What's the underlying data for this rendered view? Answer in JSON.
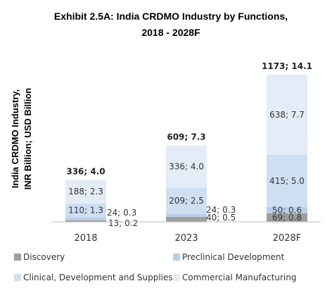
{
  "chart_data": {
    "type": "bar",
    "stacked": true,
    "title": "Exhibit 2.5A: India CRDMO Industry by Functions,",
    "subtitle": "2018 - 2028F",
    "ylabel_line1": "India CRDMO Industry,",
    "ylabel_line2": "INR Billion; USD Billion",
    "categories": [
      "2018",
      "2023",
      "2028F"
    ],
    "series": [
      {
        "name": "Discovery",
        "values": [
          13,
          40,
          69
        ],
        "labels": [
          "13; 0.2",
          "40; 0.5",
          "69; 0.8"
        ],
        "color": "#9e9e9e"
      },
      {
        "name": "Preclinical Development",
        "values": [
          24,
          24,
          50
        ],
        "labels": [
          "24; 0.3",
          "24; 0.3",
          "50; 0.6"
        ],
        "color": "#b9d0ea"
      },
      {
        "name": "Clinical, Development and Supplies",
        "values": [
          110,
          209,
          415
        ],
        "labels": [
          "110; 1.3",
          "209; 2.5",
          "415; 5.0"
        ],
        "color": "#cfdff2"
      },
      {
        "name": "Commercial Manufacturing",
        "values": [
          188,
          336,
          638
        ],
        "labels": [
          "188; 2.3",
          "336; 4.0",
          "638; 7.7"
        ],
        "color": "#e4ecf7"
      }
    ],
    "totals": [
      "336;  4.0",
      "609;  7.3",
      "1173;  14.1"
    ],
    "ylim": [
      0,
      1173
    ],
    "grid": false,
    "legend_position": "bottom"
  }
}
